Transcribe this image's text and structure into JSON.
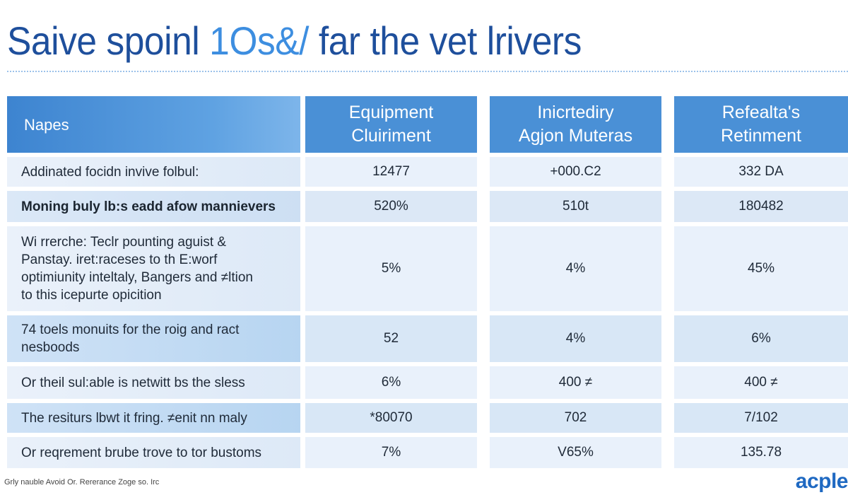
{
  "title": {
    "part1": "Saive spoinl ",
    "part2": "1Os",
    "part3": "&/ ",
    "part4": "far the vet lrivers"
  },
  "table": {
    "headers": {
      "names": "Napes",
      "col1_line1": "Equipment",
      "col1_line2": "Cluiriment",
      "col2_line1": "Inicrtediry",
      "col2_line2": "Agjon Muteras",
      "col3_line1": "Refealta's",
      "col3_line2": "Retinment"
    },
    "rows": [
      {
        "name_lines": [
          "Addinated focidn invive folbul:"
        ],
        "values": [
          "12477",
          "+000.C2",
          "332 DA"
        ]
      },
      {
        "name_lines": [
          "Moning buly lb:s eadd afow mannievers"
        ],
        "values": [
          "520%",
          "510t",
          "180482"
        ]
      },
      {
        "name_lines": [
          "Wi rrerche: Teclr pounting aguist &",
          "Panstay. iret:raceses to th E:worf",
          "optimiunity inteltaly, Bangers and ≠ltion",
          "to this icepurte opicition"
        ],
        "values": [
          "5%",
          "4%",
          "45%"
        ]
      },
      {
        "name_lines": [
          "74 toels monuits for the roig and ract",
          "nesboods"
        ],
        "values": [
          "52",
          "4%",
          "6%"
        ]
      },
      {
        "name_lines": [
          "Or theil sul:able is netwitt bs the sless"
        ],
        "values": [
          "6%",
          "400 ≠",
          "400 ≠"
        ]
      },
      {
        "name_lines": [
          "The resiturs lbwt it fring. ≠enit nn maly"
        ],
        "values": [
          "*80070",
          "702",
          "7/102"
        ]
      },
      {
        "name_lines": [
          "Or reqrement brube trove to tor bustoms"
        ],
        "values": [
          "7%",
          "V65%",
          "135.78"
        ]
      }
    ]
  },
  "footer": "Grly nauble Avoid Or. Rererance Zoge so. Irc",
  "logo": "acple"
}
